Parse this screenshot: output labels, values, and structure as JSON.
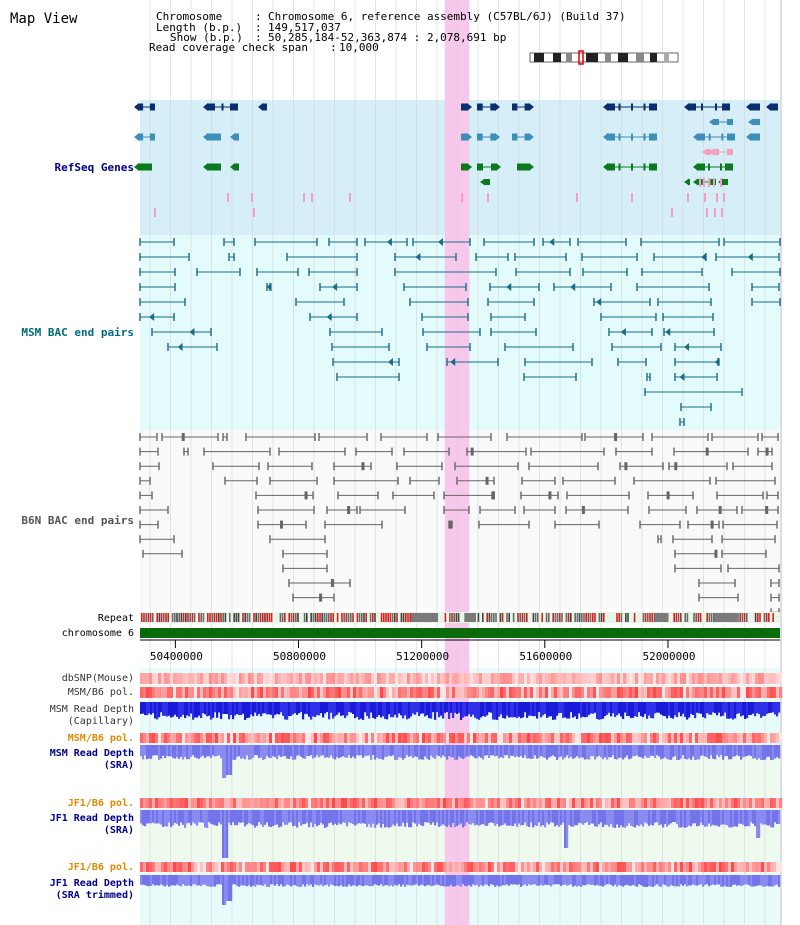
{
  "title": "Map View",
  "header": {
    "chromosome_label": "Chromosome",
    "chromosome_value": "Chromosome 6, reference assembly (C57BL/6J) (Build 37)",
    "length_label": "Length (b.p.)",
    "length_value": "149,517,037",
    "show_label": "Show (b.p.)",
    "show_value": "50,285,184-52,363,874 : 2,078,691 bp",
    "coverage_label": "Read coverage check span",
    "coverage_value": "10,000"
  },
  "tracks": {
    "refseq": "RefSeq Genes",
    "msm_bac": "MSM BAC end pairs",
    "b6n_bac": "B6N BAC end pairs",
    "repeat": "Repeat",
    "chromosome": "chromosome 6",
    "dbsnp": "dbSNP(Mouse)",
    "msm_b6_pol_1": "MSM/B6 pol.",
    "msm_depth_cap_1": "MSM Read Depth",
    "msm_depth_cap_2": "(Capillary)",
    "msm_b6_pol_2": "MSM/B6 pol.",
    "msm_depth_sra_1": "MSM Read Depth",
    "msm_depth_sra_2": "(SRA)",
    "jf1_b6_pol_1": "JF1/B6 pol.",
    "jf1_depth_sra_1": "JF1 Read Depth",
    "jf1_depth_sra_2": "(SRA)",
    "jf1_b6_pol_2": "JF1/B6 pol.",
    "jf1_depth_trim_1": "JF1 Read Depth",
    "jf1_depth_trim_2": "(SRA trimmed)"
  },
  "axis": {
    "range_bp": [
      50285184,
      52363874
    ],
    "ticks": [
      {
        "value": 50400000,
        "label": "50400000"
      },
      {
        "value": 50800000,
        "label": "50800000"
      },
      {
        "value": 51200000,
        "label": "51200000"
      },
      {
        "value": 51600000,
        "label": "51600000"
      },
      {
        "value": 52000000,
        "label": "52000000"
      }
    ]
  },
  "highlight_bp": [
    51275000,
    51355000
  ],
  "colors": {
    "refseq_bg": "#d6eef8",
    "msm_bg": "#e3fbfb",
    "b6n_bg": "#f7f9fb",
    "gene_dark": "#0a2e6e",
    "gene_mid": "#3d8fb8",
    "gene_green": "#0b7a1f",
    "gene_pink": "#f4a0c4",
    "msm_bac": "#1a6b8a",
    "b6n_bac": "#666666",
    "chromosome_bar": "#0b6b0b",
    "highlight": "#f8c8ec",
    "label_navy": "#00008b",
    "label_teal": "#006b7b",
    "label_orange": "#e08a00",
    "label_gray": "#555555"
  }
}
